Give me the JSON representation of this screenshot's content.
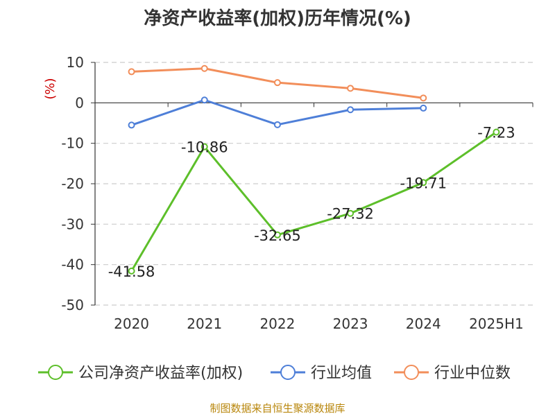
{
  "chart_data": {
    "type": "line",
    "title": "净资产收益率(加权)历年情况(%)",
    "ylabel": "(%)",
    "categories": [
      "2020",
      "2021",
      "2022",
      "2023",
      "2024",
      "2025H1"
    ],
    "ylim": [
      -50,
      10
    ],
    "yticks": [
      10,
      0,
      -10,
      -20,
      -30,
      -40,
      -50
    ],
    "grid": true,
    "legend_position": "bottom",
    "series": [
      {
        "name": "公司净资产收益率(加权)",
        "color": "#5dbf2a",
        "values": [
          -41.58,
          -10.86,
          -32.65,
          -27.32,
          -19.71,
          -7.23
        ],
        "labels": [
          "-41.58",
          "-10.86",
          "-32.65",
          "-27.32",
          "-19.71",
          "-7.23"
        ]
      },
      {
        "name": "行业均值",
        "color": "#4e7fd8",
        "values": [
          -5.5,
          0.7,
          -5.4,
          -1.7,
          -1.3,
          null
        ]
      },
      {
        "name": "行业中位数",
        "color": "#f28e5a",
        "values": [
          7.7,
          8.5,
          5.0,
          3.6,
          1.2,
          null
        ]
      }
    ]
  },
  "source": "制图数据来自恒生聚源数据库",
  "colors": {
    "axis_label": "#cc0000",
    "grid": "#cccccc"
  }
}
